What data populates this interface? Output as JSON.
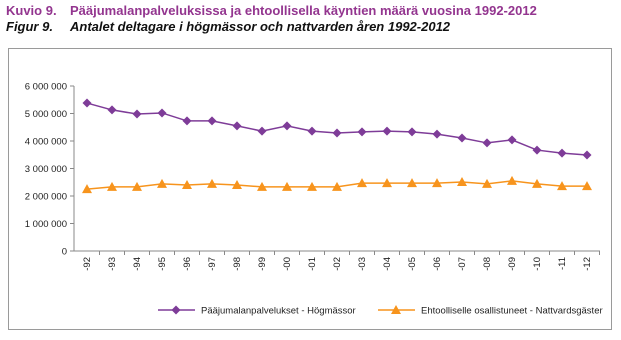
{
  "chart_data": {
    "type": "line",
    "label": "Kuvio 9.",
    "title": "Pääjumalanpalveluksissa ja ehtoollisella käyntien määrä vuosina 1992-2012",
    "label_sv": "Figur 9.",
    "subtitle": "Antalet deltagare i högmässor och nattvarden åren 1992-2012",
    "categories": [
      "-92",
      "-93",
      "-94",
      "-95",
      "-96",
      "-97",
      "-98",
      "-99",
      "-00",
      "-01",
      "-02",
      "-03",
      "-04",
      "-05",
      "-06",
      "-07",
      "-08",
      "-09",
      "-10",
      "-11",
      "-12"
    ],
    "series": [
      {
        "name": "Pääjumalanpalvelukset - Högmässor",
        "color": "#7e3c98",
        "marker": "diamond",
        "values": [
          5380000,
          5130000,
          4980000,
          5020000,
          4730000,
          4730000,
          4550000,
          4360000,
          4550000,
          4360000,
          4290000,
          4330000,
          4360000,
          4330000,
          4250000,
          4110000,
          3930000,
          4040000,
          3670000,
          3560000,
          3490000
        ]
      },
      {
        "name": "Ehtoolliselle osallistuneet - Nattvardsgäster",
        "color": "#f7941d",
        "marker": "triangle",
        "values": [
          2250000,
          2330000,
          2330000,
          2440000,
          2400000,
          2440000,
          2400000,
          2330000,
          2330000,
          2330000,
          2330000,
          2470000,
          2470000,
          2470000,
          2470000,
          2510000,
          2440000,
          2550000,
          2440000,
          2360000,
          2360000
        ]
      }
    ],
    "ylim": [
      0,
      6000000
    ],
    "yticks": [
      0,
      {
        "value": 1000000,
        "label": "1 000 000"
      },
      {
        "value": 2000000,
        "label": "2 000 000"
      },
      {
        "value": 3000000,
        "label": "3 000 000"
      },
      {
        "value": 4000000,
        "label": "4 000 000"
      },
      {
        "value": 5000000,
        "label": "5 000 000"
      },
      {
        "value": 6000000,
        "label": "6 000 000"
      }
    ],
    "grid": false
  }
}
